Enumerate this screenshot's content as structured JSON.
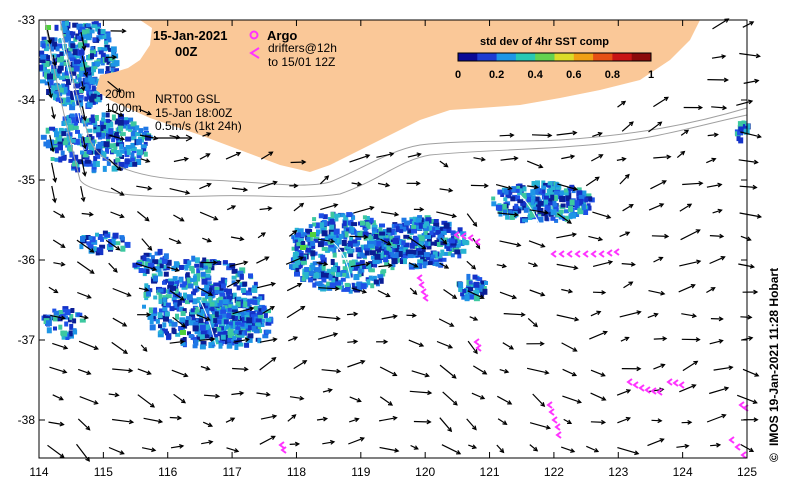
{
  "date": "15-Jan-2021",
  "time": "00Z",
  "product": "NRT00 GSL",
  "product_time": "15-Jan 18:00Z",
  "scale_label": "0.5m/s (1kt 24h)",
  "isobath_labels": [
    "200m",
    "1000m"
  ],
  "argo_label": "Argo",
  "drifters_label": "drifters@12h",
  "drifters_until": "to 15/01 12Z",
  "colorbar": {
    "title": "std dev of 4hr SST comp",
    "ticks": [
      "0",
      "0.2",
      "0.4",
      "0.6",
      "0.8",
      "1"
    ],
    "colors": [
      "#0a0a96",
      "#1e3cd2",
      "#1e96e6",
      "#28c8b4",
      "#64d250",
      "#dcdc28",
      "#f0a014",
      "#e65014",
      "#c81414",
      "#8c0a0a"
    ]
  },
  "x_ticks": [
    "114",
    "115",
    "116",
    "117",
    "118",
    "119",
    "120",
    "121",
    "122",
    "123",
    "124",
    "125"
  ],
  "y_ticks": [
    "-33",
    "-34",
    "-35",
    "-36",
    "-37",
    "-38"
  ],
  "credit": "IMOS 19-Jan-2021 11:28 Hobart",
  "credit_symbol": "©",
  "land_color": "#fac898",
  "drifter_color": "#ff33ff"
}
